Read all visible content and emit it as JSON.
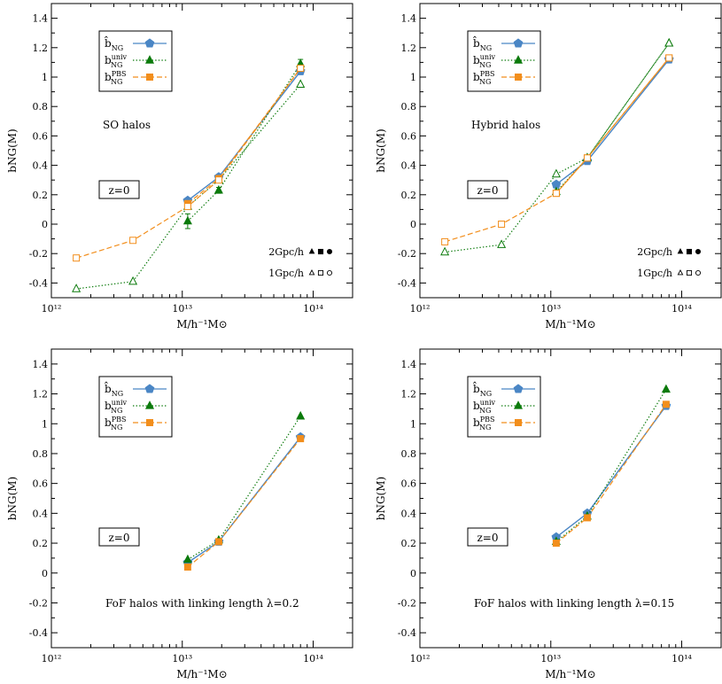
{
  "colors": {
    "hat": "#4a86c5",
    "univ": "#0b7a0b",
    "pbs": "#f28e1c"
  },
  "icons": [
    "filled-triangle-icon",
    "filled-square-icon",
    "filled-circle-icon",
    "open-triangle-icon",
    "open-square-icon",
    "open-circle-icon",
    "pentagon-icon"
  ],
  "chart_data": [
    {
      "type": "line",
      "id": "so",
      "xscale": "log",
      "xlim": [
        1000000000000.0,
        200000000000000.0
      ],
      "ylim": [
        -0.5,
        1.5
      ],
      "xlabel": "M/h⁻¹M⊙",
      "ylabel": "bNG(M)",
      "xticks": [
        "10¹²",
        "10¹³",
        "10¹⁴"
      ],
      "yticks": [
        "-0.4",
        "-0.2",
        "0",
        "0.2",
        "0.4",
        "0.6",
        "0.8",
        "1",
        "1.2",
        "1.4"
      ],
      "legend_position": "top-left",
      "annotations": {
        "halo_label": "SO halos",
        "z_label": "z=0"
      },
      "resolution_legend": [
        {
          "label": "2Gpc/h",
          "marker": "filled"
        },
        {
          "label": "1Gpc/h",
          "marker": "open"
        }
      ],
      "series": [
        {
          "key": "hat",
          "name": "b̂NG",
          "style": "solid",
          "marker": "pentagon",
          "fill": true,
          "x": [
            11000000000000.0,
            19000000000000.0,
            80000000000000.0
          ],
          "y": [
            0.16,
            0.32,
            1.04
          ]
        },
        {
          "key": "univ",
          "name": "bNG^univ",
          "style": "dotted",
          "marker": "triangle",
          "fill": true,
          "x": [
            11000000000000.0,
            19000000000000.0,
            80000000000000.0
          ],
          "y": [
            0.02,
            0.23,
            1.09
          ],
          "err": [
            0.05,
            0.02,
            0.03
          ]
        },
        {
          "key": "univ",
          "name": "bNG^univ",
          "style": "dotted",
          "marker": "triangle",
          "fill": false,
          "x": [
            1550000000000.0,
            4200000000000.0,
            11000000000000.0,
            19000000000000.0,
            80000000000000.0
          ],
          "y": [
            -0.44,
            -0.39,
            0.12,
            0.3,
            0.95
          ]
        },
        {
          "key": "pbs",
          "name": "bNG^PBS",
          "style": "dashed",
          "marker": "square",
          "fill": true,
          "x": [
            11000000000000.0,
            19000000000000.0,
            80000000000000.0
          ],
          "y": [
            0.14,
            0.31,
            1.06
          ]
        },
        {
          "key": "pbs",
          "name": "bNG^PBS",
          "style": "dashed",
          "marker": "square",
          "fill": false,
          "x": [
            1550000000000.0,
            4200000000000.0,
            11000000000000.0,
            19000000000000.0,
            80000000000000.0
          ],
          "y": [
            -0.23,
            -0.11,
            0.12,
            0.3,
            1.06
          ]
        }
      ]
    },
    {
      "type": "line",
      "id": "hybrid",
      "xscale": "log",
      "xlim": [
        1000000000000.0,
        200000000000000.0
      ],
      "ylim": [
        -0.5,
        1.5
      ],
      "xlabel": "M/h⁻¹M⊙",
      "ylabel": "bNG(M)",
      "xticks": [
        "10¹²",
        "10¹³",
        "10¹⁴"
      ],
      "yticks": [
        "-0.4",
        "-0.2",
        "0",
        "0.2",
        "0.4",
        "0.6",
        "0.8",
        "1",
        "1.2",
        "1.4"
      ],
      "legend_position": "top-left",
      "annotations": {
        "halo_label": "Hybrid halos",
        "z_label": "z=0"
      },
      "resolution_legend": [
        {
          "label": "2Gpc/h",
          "marker": "filled"
        },
        {
          "label": "1Gpc/h",
          "marker": "open"
        }
      ],
      "series": [
        {
          "key": "hat",
          "name": "b̂NG",
          "style": "solid",
          "marker": "pentagon",
          "fill": true,
          "x": [
            11000000000000.0,
            19000000000000.0,
            80000000000000.0
          ],
          "y": [
            0.27,
            0.43,
            1.12
          ]
        },
        {
          "key": "univ",
          "name": "bNG^univ",
          "style": "dotted",
          "marker": "triangle",
          "fill": true,
          "x": [
            11000000000000.0,
            19000000000000.0,
            80000000000000.0
          ],
          "y": [
            0.22,
            0.45,
            1.23
          ]
        },
        {
          "key": "univ",
          "name": "bNG^univ",
          "style": "dotted",
          "marker": "triangle",
          "fill": false,
          "x": [
            1550000000000.0,
            4200000000000.0,
            11000000000000.0,
            19000000000000.0,
            80000000000000.0
          ],
          "y": [
            -0.19,
            -0.14,
            0.34,
            0.45,
            1.23
          ]
        },
        {
          "key": "pbs",
          "name": "bNG^PBS",
          "style": "dashed",
          "marker": "square",
          "fill": true,
          "x": [
            11000000000000.0,
            19000000000000.0,
            80000000000000.0
          ],
          "y": [
            0.21,
            0.45,
            1.13
          ]
        },
        {
          "key": "pbs",
          "name": "bNG^PBS",
          "style": "dashed",
          "marker": "square",
          "fill": false,
          "x": [
            1550000000000.0,
            4200000000000.0,
            11000000000000.0,
            19000000000000.0,
            80000000000000.0
          ],
          "y": [
            -0.12,
            0.0,
            0.21,
            0.45,
            1.13
          ]
        }
      ]
    },
    {
      "type": "line",
      "id": "fof02",
      "xscale": "log",
      "xlim": [
        1000000000000.0,
        200000000000000.0
      ],
      "ylim": [
        -0.5,
        1.5
      ],
      "xlabel": "M/h⁻¹M⊙",
      "ylabel": "bNG(M)",
      "xticks": [
        "10¹²",
        "10¹³",
        "10¹⁴"
      ],
      "yticks": [
        "-0.4",
        "-0.2",
        "0",
        "0.2",
        "0.4",
        "0.6",
        "0.8",
        "1",
        "1.2",
        "1.4"
      ],
      "legend_position": "top-left",
      "annotations": {
        "halo_label": "FoF halos with linking length λ=0.2",
        "z_label": "z=0"
      },
      "series": [
        {
          "key": "hat",
          "name": "b̂NG",
          "style": "solid",
          "marker": "pentagon",
          "fill": true,
          "x": [
            11000000000000.0,
            19000000000000.0,
            80000000000000.0
          ],
          "y": [
            0.07,
            0.21,
            0.91
          ]
        },
        {
          "key": "univ",
          "name": "bNG^univ",
          "style": "dotted",
          "marker": "triangle",
          "fill": true,
          "x": [
            11000000000000.0,
            19000000000000.0,
            80000000000000.0
          ],
          "y": [
            0.09,
            0.22,
            1.05
          ]
        },
        {
          "key": "pbs",
          "name": "bNG^PBS",
          "style": "dashed",
          "marker": "square",
          "fill": true,
          "x": [
            11000000000000.0,
            19000000000000.0,
            80000000000000.0
          ],
          "y": [
            0.04,
            0.21,
            0.9
          ]
        }
      ]
    },
    {
      "type": "line",
      "id": "fof015",
      "xscale": "log",
      "xlim": [
        1000000000000.0,
        200000000000000.0
      ],
      "ylim": [
        -0.5,
        1.5
      ],
      "xlabel": "M/h⁻¹M⊙",
      "ylabel": "bNG(M)",
      "xticks": [
        "10¹²",
        "10¹³",
        "10¹⁴"
      ],
      "yticks": [
        "-0.4",
        "-0.2",
        "0",
        "0.2",
        "0.4",
        "0.6",
        "0.8",
        "1",
        "1.2",
        "1.4"
      ],
      "legend_position": "top-left",
      "annotations": {
        "halo_label": "FoF halos with linking length λ=0.15",
        "z_label": "z=0"
      },
      "series": [
        {
          "key": "hat",
          "name": "b̂NG",
          "style": "solid",
          "marker": "pentagon",
          "fill": true,
          "x": [
            11000000000000.0,
            19000000000000.0,
            76000000000000.0
          ],
          "y": [
            0.24,
            0.4,
            1.12
          ]
        },
        {
          "key": "univ",
          "name": "bNG^univ",
          "style": "dotted",
          "marker": "triangle",
          "fill": true,
          "x": [
            11000000000000.0,
            19000000000000.0,
            76000000000000.0
          ],
          "y": [
            0.21,
            0.38,
            1.23
          ]
        },
        {
          "key": "pbs",
          "name": "bNG^PBS",
          "style": "dashed",
          "marker": "square",
          "fill": true,
          "x": [
            11000000000000.0,
            19000000000000.0,
            76000000000000.0
          ],
          "y": [
            0.2,
            0.37,
            1.13
          ]
        }
      ]
    }
  ]
}
